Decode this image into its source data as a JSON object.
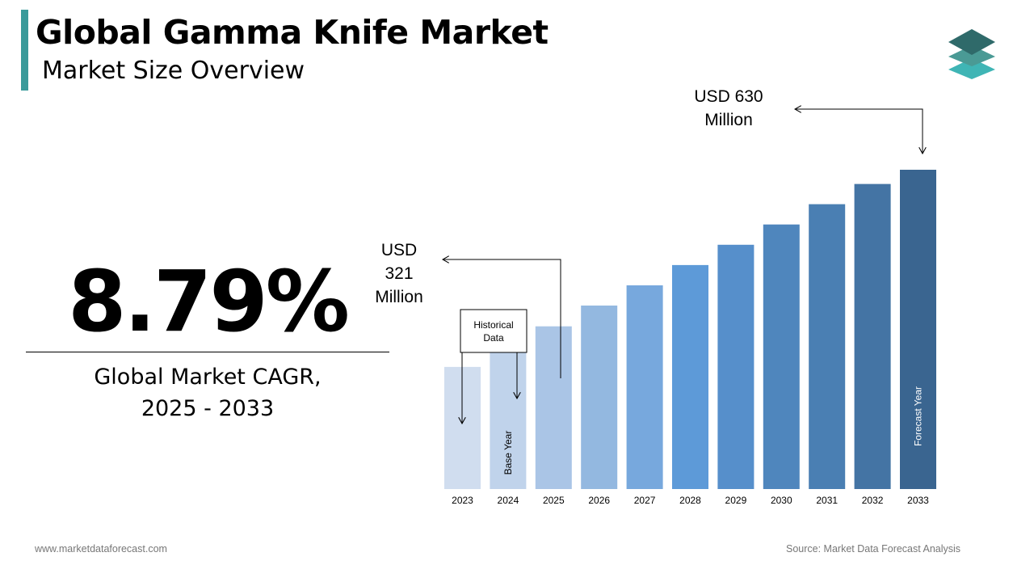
{
  "header": {
    "title": "Global Gamma Knife Market",
    "subtitle": "Market Size Overview",
    "accent_color": "#3a9a9a"
  },
  "logo": {
    "icon": "stacked-layers-icon",
    "colors": [
      "#2f6a6a",
      "#4a9a95",
      "#3fb5b5"
    ]
  },
  "summary": {
    "cagr_value": "8.79%",
    "cagr_label_line1": "Global Market CAGR,",
    "cagr_label_line2": "2025 - 2033"
  },
  "footer": {
    "website": "www.marketdataforecast.com",
    "source": "Source: Market Data Forecast Analysis"
  },
  "chart_data": {
    "type": "bar",
    "title": "",
    "xlabel": "",
    "ylabel": "",
    "categories": [
      "2023",
      "2024",
      "2025",
      "2026",
      "2027",
      "2028",
      "2029",
      "2030",
      "2031",
      "2032",
      "2033"
    ],
    "values": [
      241,
      281,
      321,
      362,
      402,
      442,
      482,
      522,
      562,
      602,
      630
    ],
    "value_unit": "USD Million",
    "ylim": [
      0,
      630
    ],
    "grid": false,
    "bar_colors": [
      "#d0ddef",
      "#c0d3eb",
      "#aac5e6",
      "#93b8e0",
      "#77a8dd",
      "#5d9ad8",
      "#568fcb",
      "#4f86bd",
      "#4a7fb3",
      "#4474a4",
      "#3a6590"
    ],
    "bar_labels": {
      "2024": "Base Year",
      "2033": "Forecast Year"
    },
    "annotations": {
      "start_value_lines": [
        "USD",
        "321",
        "Million"
      ],
      "end_value_lines": [
        "USD 630",
        "Million"
      ],
      "historical_box_lines": [
        "Historical",
        "Data"
      ]
    }
  }
}
